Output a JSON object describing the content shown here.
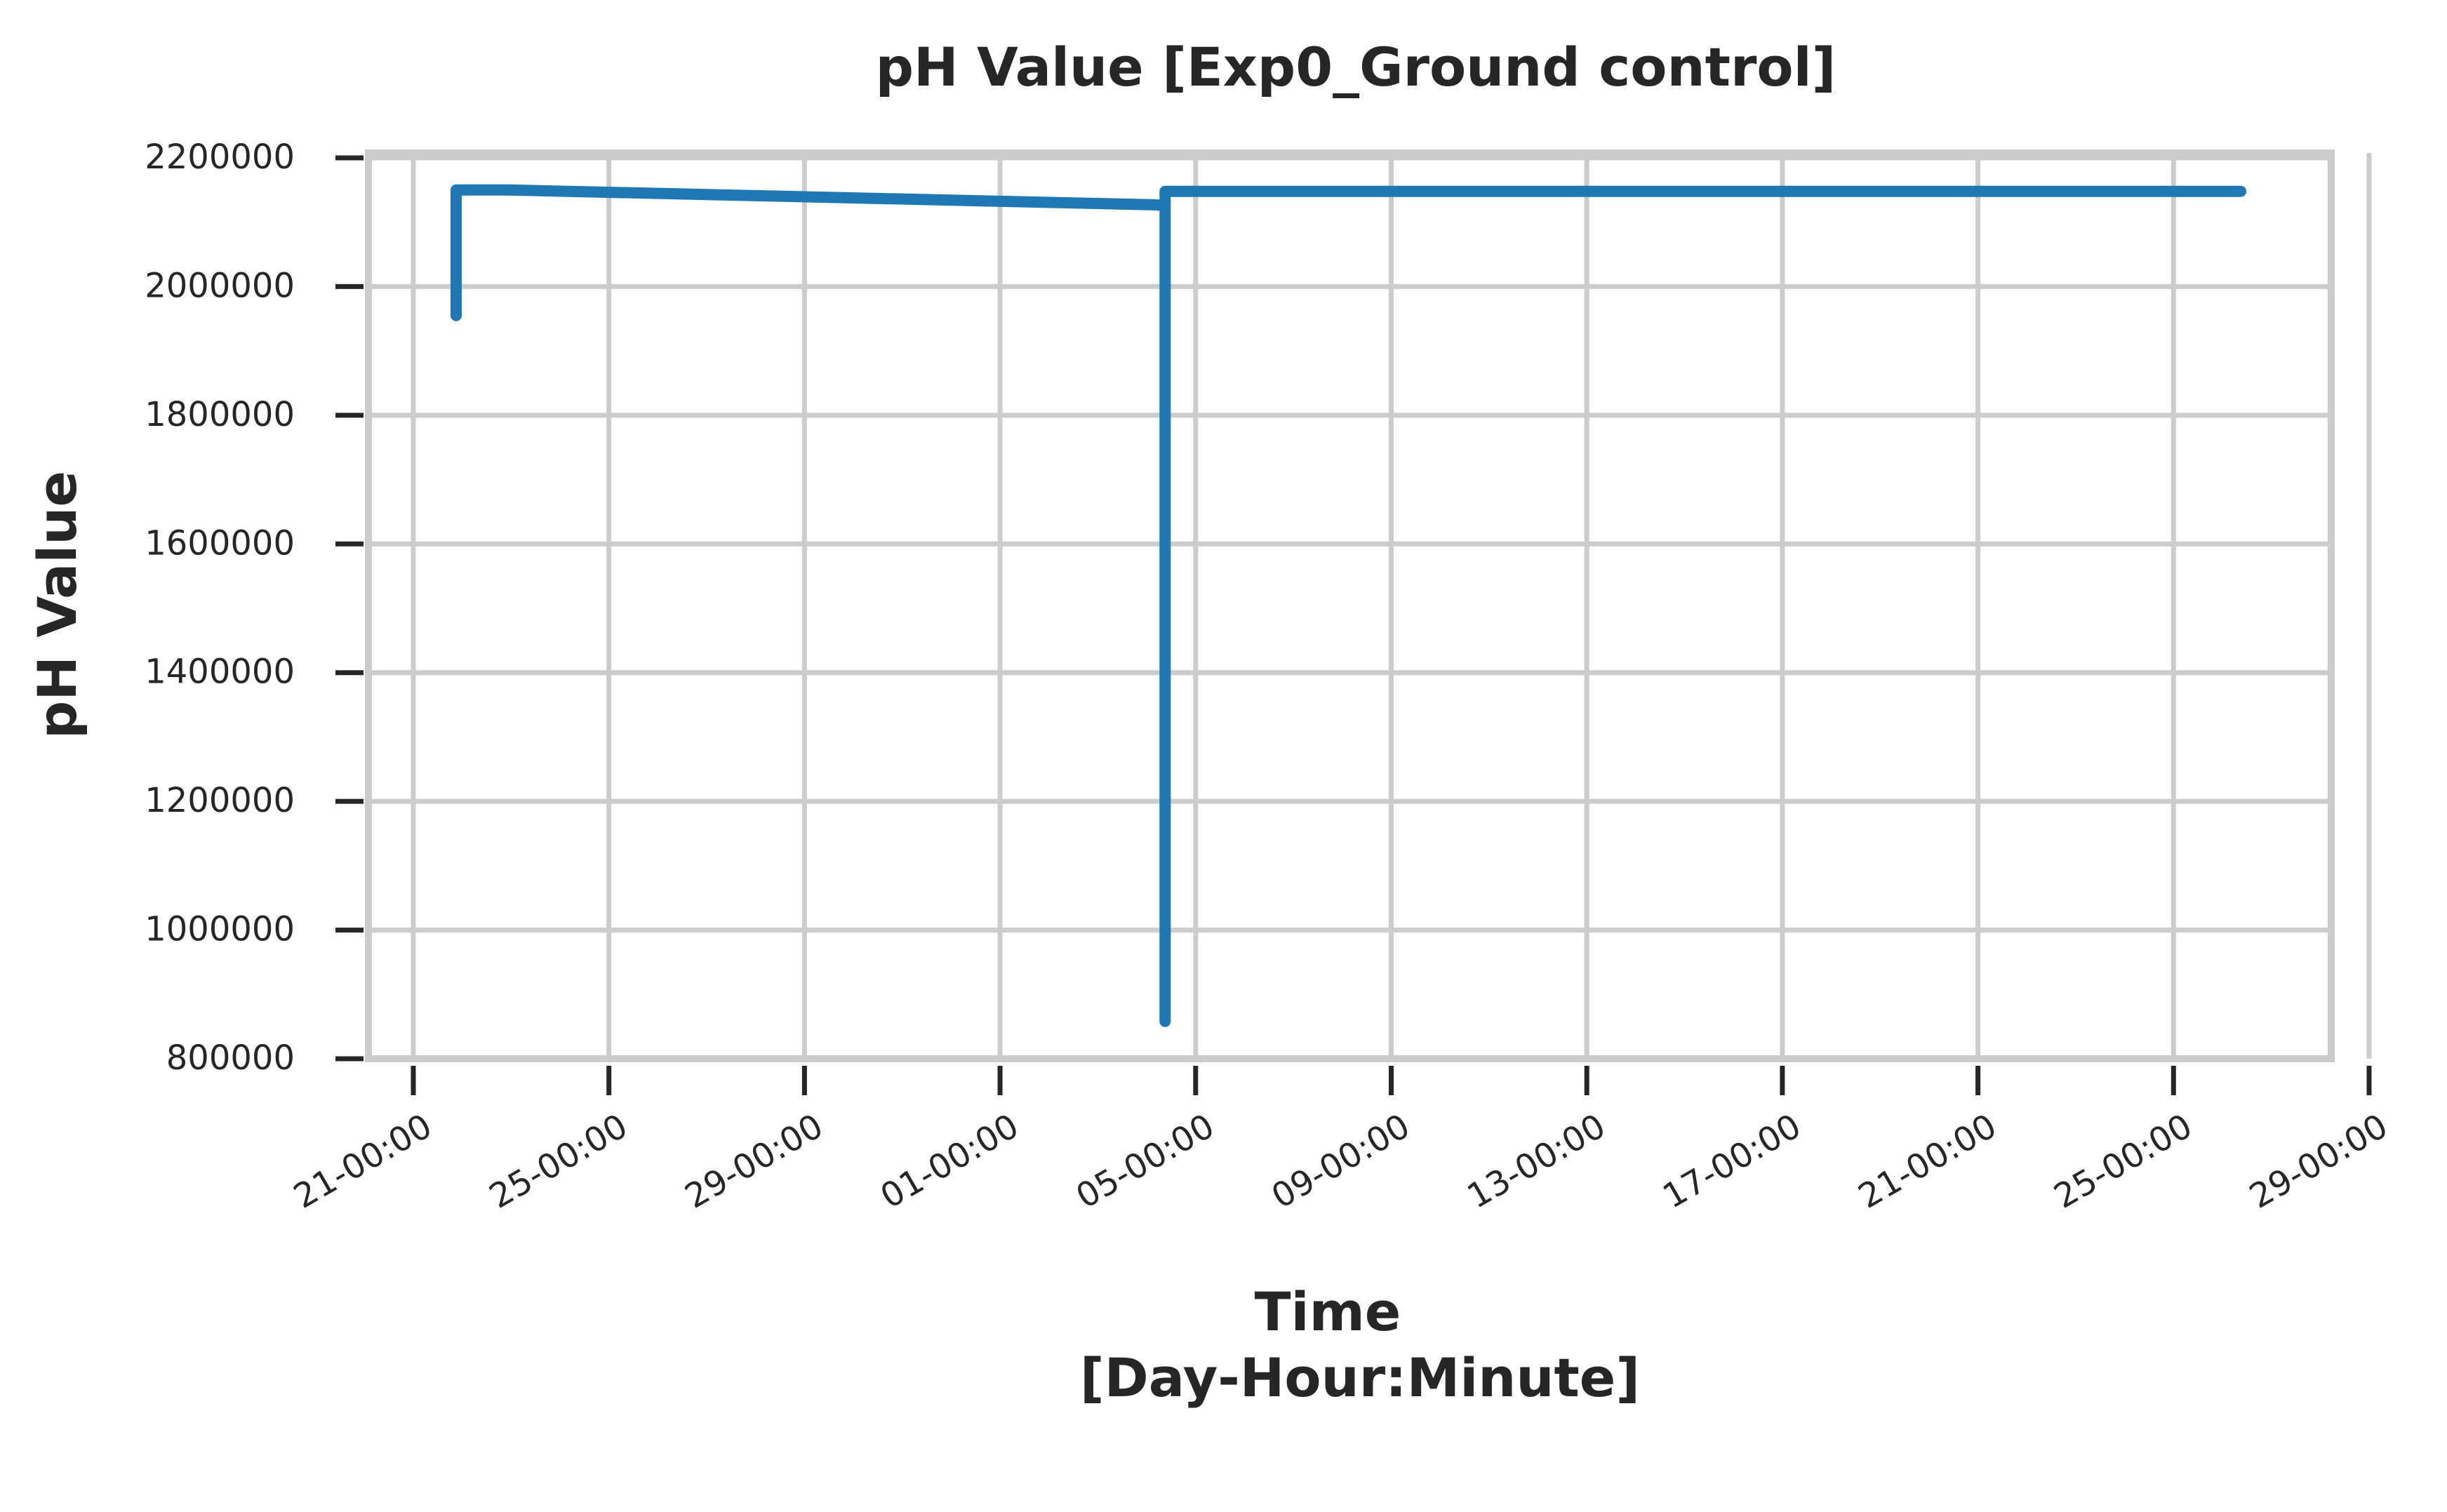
{
  "chart_data": {
    "type": "line",
    "title": "pH Value [Exp0_Ground control]",
    "xlabel": "Time",
    "xlabel_line2": "[Day-Hour:Minute]",
    "ylabel": "pH Value",
    "y_ticks": [
      800000,
      1000000,
      1200000,
      1400000,
      1600000,
      1800000,
      2000000,
      2200000
    ],
    "y_tick_labels": [
      "800000",
      "1000000",
      "1200000",
      "1400000",
      "1600000",
      "1800000",
      "2000000",
      "2200000"
    ],
    "x_tick_labels": [
      "21-00:00",
      "25-00:00",
      "29-00:00",
      "01-00:00",
      "05-00:00",
      "09-00:00",
      "13-00:00",
      "17-00:00",
      "21-00:00",
      "25-00:00",
      "29-00:00"
    ],
    "ylim": [
      800000,
      2210000
    ],
    "grid": true,
    "line_color": "#1f77b4",
    "series": [
      {
        "points": [
          {
            "x": "21-21:00",
            "y": 1955000
          },
          {
            "x": "21-21:00",
            "y": 2150000
          },
          {
            "x": "22-23:00",
            "y": 2150000
          },
          {
            "x": "05-03:30",
            "y": 2127000
          },
          {
            "x": "05-09:00",
            "y": 2126000
          },
          {
            "x": "05-09:00",
            "y": 858000
          },
          {
            "x": "05-09:00",
            "y": 2148000
          },
          {
            "x": "27-09:00",
            "y": 2148000
          }
        ]
      }
    ]
  }
}
